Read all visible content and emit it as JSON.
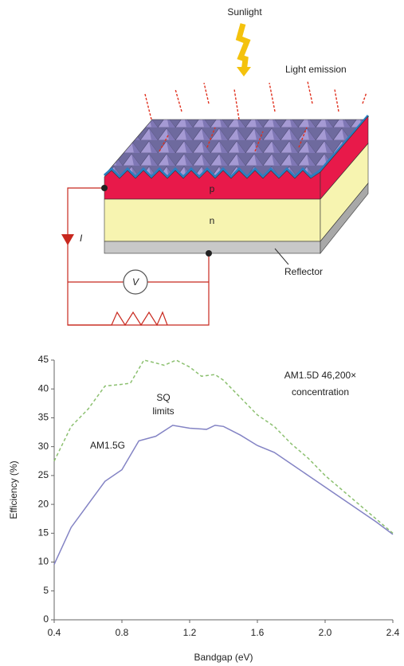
{
  "diagram": {
    "sunlight": "Sunlight",
    "light_emission": "Light emission",
    "p_layer": "p",
    "n_layer": "n",
    "current": "I",
    "voltmeter": "V",
    "reflector": "Reflector"
  },
  "chart_data": {
    "type": "line",
    "xlabel": "Bandgap (eV)",
    "ylabel": "Efficiency (%)",
    "annotations": [
      "concentration",
      "SQ",
      "limits"
    ],
    "xlim": [
      0.4,
      2.4
    ],
    "xticks": [
      0.4,
      0.8,
      1.2,
      1.6,
      {
        "value": 2,
        "label": "2.0"
      },
      2.4
    ],
    "ylim": [
      0,
      45
    ],
    "yticks": [
      0,
      5,
      10,
      15,
      20,
      25,
      30,
      35,
      40,
      45
    ],
    "series": [
      {
        "name": "AM1.5G",
        "color": "#8383c4",
        "style": "solid",
        "x": [
          0.4,
          0.5,
          0.6,
          0.7,
          0.8,
          0.9,
          1.0,
          1.1,
          1.2,
          1.3,
          1.35,
          1.4,
          1.5,
          1.6,
          1.7,
          1.8,
          1.9,
          2.0,
          2.1,
          2.2,
          2.3,
          2.4
        ],
        "values": [
          9.6,
          16,
          20,
          24,
          26,
          31,
          31.8,
          33.7,
          33.2,
          33,
          33.7,
          33.5,
          32,
          30.2,
          29,
          27,
          25,
          23,
          21,
          19,
          17,
          14.8
        ]
      },
      {
        "name": "AM1.5D 46,200×",
        "color": "#8cc070",
        "style": "dashed",
        "x": [
          0.4,
          0.5,
          0.6,
          0.7,
          0.8,
          0.85,
          0.93,
          1.0,
          1.05,
          1.12,
          1.2,
          1.27,
          1.35,
          1.4,
          1.5,
          1.6,
          1.7,
          1.8,
          1.9,
          2.0,
          2.1,
          2.2,
          2.3,
          2.4
        ],
        "values": [
          27.5,
          33.5,
          36.5,
          40.5,
          40.8,
          41,
          45,
          44.5,
          44.1,
          45,
          43.8,
          42.2,
          42.5,
          41.5,
          38.5,
          35.5,
          33.5,
          30.5,
          28,
          25,
          22.5,
          20,
          17.5,
          15
        ]
      }
    ]
  }
}
